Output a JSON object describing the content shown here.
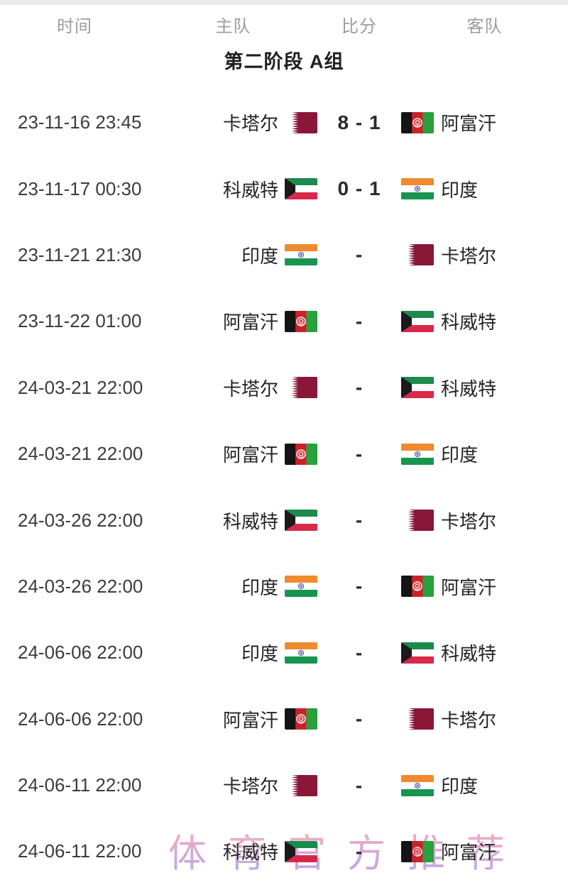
{
  "header": {
    "time": "时间",
    "home": "主队",
    "score": "比分",
    "away": "客队"
  },
  "group_title": "第二阶段 A组",
  "watermark": "体育官方推荐",
  "teams": {
    "qatar": {
      "name": "卡塔尔"
    },
    "afghanistan": {
      "name": "阿富汗"
    },
    "kuwait": {
      "name": "科威特"
    },
    "india": {
      "name": "印度"
    }
  },
  "flag_colors": {
    "qatar": {
      "maroon": "#8a1638",
      "white": "#ffffff"
    },
    "afghanistan": {
      "black": "#141414",
      "red": "#ce2028",
      "green": "#28a03c",
      "emblem": "#ffffff"
    },
    "kuwait": {
      "green": "#1b8a4c",
      "white": "#ffffff",
      "red": "#d8294a",
      "black": "#1a1a1a"
    },
    "india": {
      "saffron": "#ef8a2f",
      "white": "#ffffff",
      "green": "#17954e",
      "navy": "#3c50a3"
    }
  },
  "text_colors": {
    "header": "#9c9c9c",
    "title": "#1f1f1f",
    "time": "#3c3c3c",
    "team": "#242424",
    "score": "#2a2a2a"
  },
  "matches": [
    {
      "time": "23-11-16 23:45",
      "home": "qatar",
      "away": "afghanistan",
      "score": "8 - 1"
    },
    {
      "time": "23-11-17 00:30",
      "home": "kuwait",
      "away": "india",
      "score": "0 - 1"
    },
    {
      "time": "23-11-21 21:30",
      "home": "india",
      "away": "qatar",
      "score": "-"
    },
    {
      "time": "23-11-22 01:00",
      "home": "afghanistan",
      "away": "kuwait",
      "score": "-"
    },
    {
      "time": "24-03-21 22:00",
      "home": "qatar",
      "away": "kuwait",
      "score": "-"
    },
    {
      "time": "24-03-21 22:00",
      "home": "afghanistan",
      "away": "india",
      "score": "-"
    },
    {
      "time": "24-03-26 22:00",
      "home": "kuwait",
      "away": "qatar",
      "score": "-"
    },
    {
      "time": "24-03-26 22:00",
      "home": "india",
      "away": "afghanistan",
      "score": "-"
    },
    {
      "time": "24-06-06 22:00",
      "home": "india",
      "away": "kuwait",
      "score": "-"
    },
    {
      "time": "24-06-06 22:00",
      "home": "afghanistan",
      "away": "qatar",
      "score": "-"
    },
    {
      "time": "24-06-11 22:00",
      "home": "qatar",
      "away": "india",
      "score": "-"
    },
    {
      "time": "24-06-11 22:00",
      "home": "kuwait",
      "away": "afghanistan",
      "score": "-"
    }
  ]
}
